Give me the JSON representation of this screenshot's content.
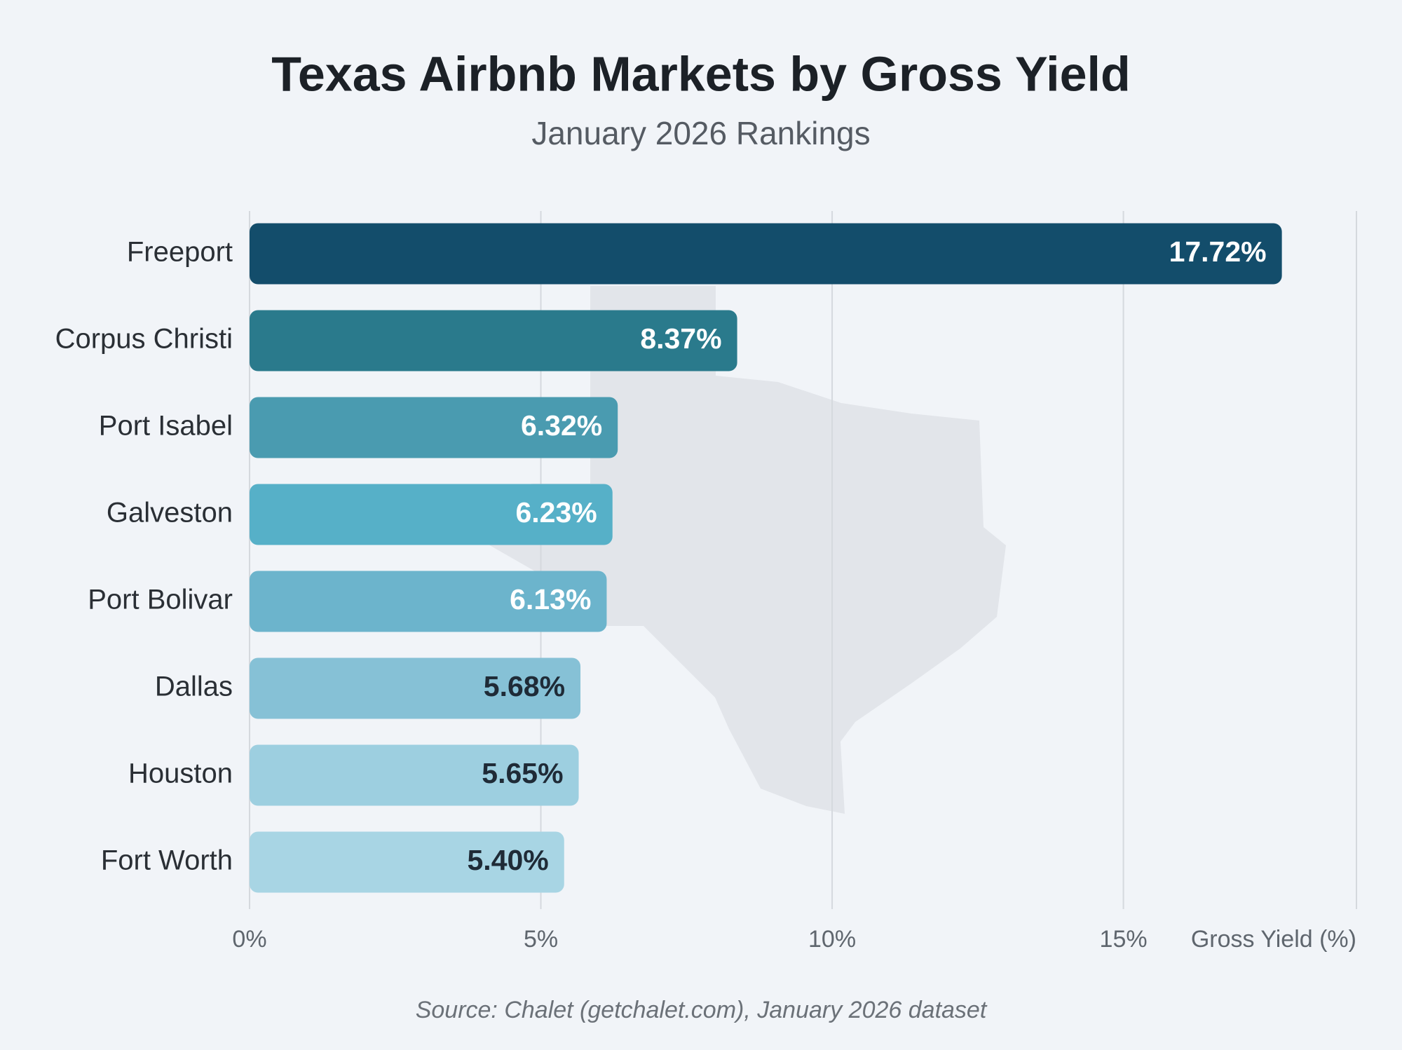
{
  "chart_data": {
    "type": "bar",
    "orientation": "horizontal",
    "title": "Texas Airbnb Markets by Gross Yield",
    "subtitle": "January 2026 Rankings",
    "x_label": "Gross Yield (%)",
    "source": "Source: Chalet (getchalet.com), January 2026 dataset",
    "categories": [
      "Freeport",
      "Corpus Christi",
      "Port Isabel",
      "Galveston",
      "Port Bolivar",
      "Dallas",
      "Houston",
      "Fort Worth"
    ],
    "values": [
      17.72,
      8.37,
      6.32,
      6.23,
      6.13,
      5.68,
      5.65,
      5.4
    ],
    "value_labels": [
      "17.72%",
      "8.37%",
      "6.32%",
      "6.23%",
      "6.13%",
      "5.68%",
      "5.65%",
      "5.40%"
    ],
    "colors": [
      "#134d6b",
      "#2a7a8c",
      "#4a9bb0",
      "#56b0c8",
      "#6cb4cc",
      "#86c1d6",
      "#9dcfe0",
      "#a8d5e4"
    ],
    "xlim": [
      0,
      19
    ],
    "xticks": [
      {
        "value": 0,
        "label": "0%"
      },
      {
        "value": 5,
        "label": "5%"
      },
      {
        "value": 10,
        "label": "10%"
      },
      {
        "value": 15,
        "label": "15%"
      }
    ],
    "grid": true
  }
}
